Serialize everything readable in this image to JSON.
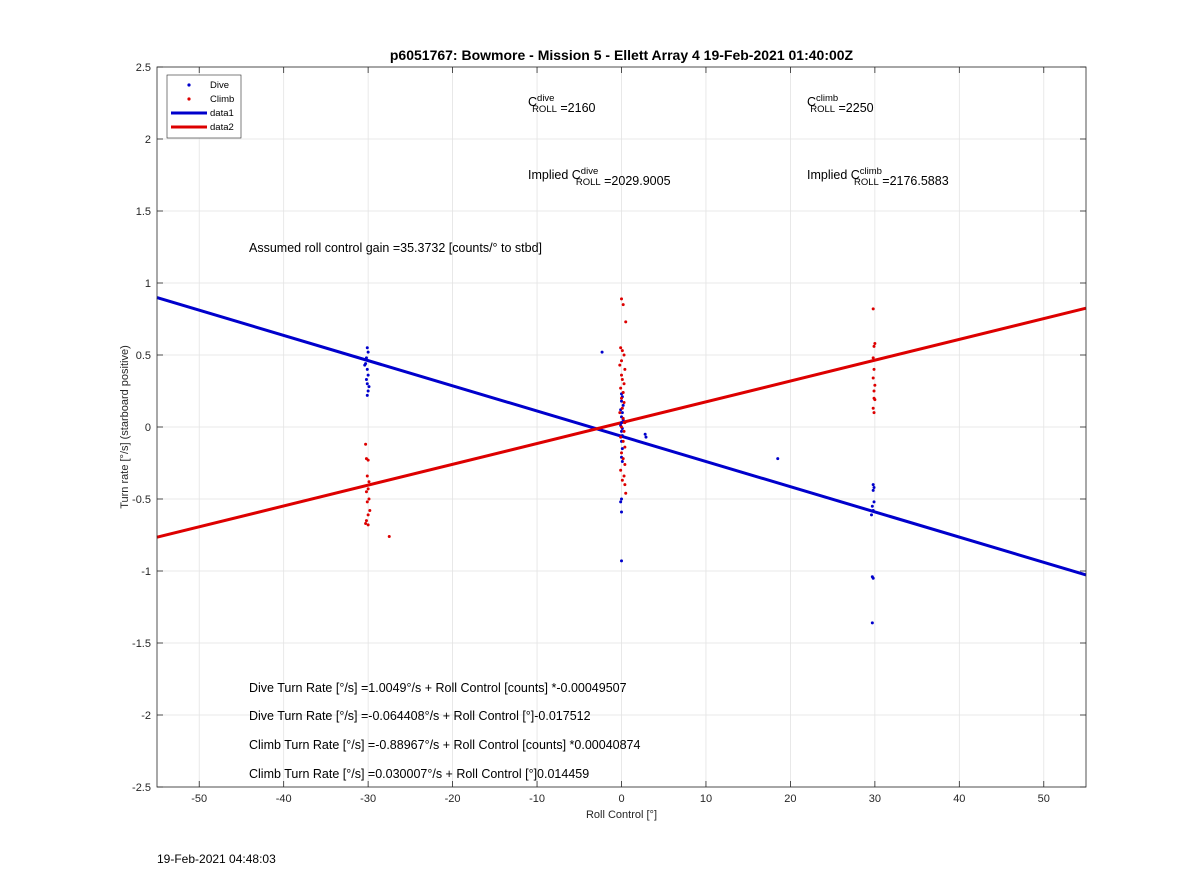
{
  "chart_data": {
    "type": "scatter",
    "title": "p6051767: Bowmore - Mission 5 - Ellett Array 4 19-Feb-2021 01:40:00Z",
    "xlabel": "Roll Control [°]",
    "ylabel": "Turn rate [°/s] (starboard positive)",
    "xlim": [
      -55,
      55
    ],
    "ylim": [
      -2.5,
      2.5
    ],
    "xticks": [
      -50,
      -40,
      -30,
      -20,
      -10,
      0,
      10,
      20,
      30,
      40,
      50
    ],
    "yticks": [
      -2.5,
      -2,
      -1.5,
      -1,
      -0.5,
      0,
      0.5,
      1,
      1.5,
      2,
      2.5
    ],
    "xtick_labels": [
      "-50",
      "-40",
      "-30",
      "-20",
      "-10",
      "0",
      "10",
      "20",
      "30",
      "40",
      "50"
    ],
    "ytick_labels": [
      "-2.5",
      "-2",
      "-1.5",
      "-1",
      "-0.5",
      "0",
      "0.5",
      "1",
      "1.5",
      "2",
      "2.5"
    ],
    "grid": true,
    "legend_position": "top-left",
    "series": [
      {
        "name": "Dive",
        "kind": "scatter",
        "color": "#0000cc",
        "points": [
          [
            -30.4,
            0.43
          ],
          [
            -30.3,
            0.44
          ],
          [
            -30.1,
            0.55
          ],
          [
            -30.0,
            0.52
          ],
          [
            -30.2,
            0.48
          ],
          [
            -30.1,
            0.4
          ],
          [
            -30.0,
            0.36
          ],
          [
            -30.2,
            0.33
          ],
          [
            -30.1,
            0.3
          ],
          [
            -29.9,
            0.28
          ],
          [
            -30.0,
            0.25
          ],
          [
            -30.1,
            0.22
          ],
          [
            -2.3,
            0.52
          ],
          [
            0.0,
            0.23
          ],
          [
            0.1,
            0.21
          ],
          [
            0.0,
            0.18
          ],
          [
            0.2,
            0.15
          ],
          [
            -0.1,
            0.12
          ],
          [
            0.1,
            0.1
          ],
          [
            0.0,
            0.07
          ],
          [
            0.2,
            0.05
          ],
          [
            0.0,
            0.03
          ],
          [
            -0.1,
            0.01
          ],
          [
            0.1,
            -0.01
          ],
          [
            0.0,
            -0.03
          ],
          [
            0.1,
            -0.06
          ],
          [
            0.0,
            -0.1
          ],
          [
            0.1,
            -0.15
          ],
          [
            0.0,
            -0.21
          ],
          [
            0.1,
            -0.24
          ],
          [
            0.0,
            -0.5
          ],
          [
            -0.1,
            -0.52
          ],
          [
            0.0,
            -0.59
          ],
          [
            0.0,
            -0.93
          ],
          [
            2.8,
            -0.05
          ],
          [
            2.9,
            -0.07
          ],
          [
            18.5,
            -0.22
          ],
          [
            29.8,
            -0.4
          ],
          [
            29.9,
            -0.42
          ],
          [
            29.8,
            -0.44
          ],
          [
            29.9,
            -0.52
          ],
          [
            29.7,
            -0.55
          ],
          [
            29.8,
            -0.58
          ],
          [
            29.6,
            -0.61
          ],
          [
            29.7,
            -1.04
          ],
          [
            29.8,
            -1.05
          ],
          [
            29.7,
            -1.36
          ]
        ]
      },
      {
        "name": "Climb",
        "kind": "scatter",
        "color": "#dd0000",
        "points": [
          [
            -30.3,
            -0.12
          ],
          [
            -30.2,
            -0.22
          ],
          [
            -30.0,
            -0.23
          ],
          [
            -30.1,
            -0.34
          ],
          [
            -29.9,
            -0.38
          ],
          [
            -30.0,
            -0.43
          ],
          [
            -30.2,
            -0.45
          ],
          [
            -29.9,
            -0.5
          ],
          [
            -30.1,
            -0.52
          ],
          [
            -29.8,
            -0.58
          ],
          [
            -30.0,
            -0.61
          ],
          [
            -30.2,
            -0.65
          ],
          [
            -30.3,
            -0.67
          ],
          [
            -30.0,
            -0.68
          ],
          [
            -27.5,
            -0.76
          ],
          [
            0.0,
            0.89
          ],
          [
            0.2,
            0.85
          ],
          [
            0.5,
            0.73
          ],
          [
            -0.1,
            0.55
          ],
          [
            0.1,
            0.53
          ],
          [
            0.3,
            0.5
          ],
          [
            0.0,
            0.46
          ],
          [
            -0.2,
            0.43
          ],
          [
            0.4,
            0.4
          ],
          [
            0.0,
            0.36
          ],
          [
            0.1,
            0.33
          ],
          [
            0.3,
            0.3
          ],
          [
            -0.1,
            0.27
          ],
          [
            0.2,
            0.24
          ],
          [
            0.0,
            0.2
          ],
          [
            0.3,
            0.17
          ],
          [
            0.1,
            0.13
          ],
          [
            -0.2,
            0.1
          ],
          [
            0.2,
            0.06
          ],
          [
            0.4,
            0.03
          ],
          [
            0.0,
            0.0
          ],
          [
            0.3,
            -0.03
          ],
          [
            -0.1,
            -0.07
          ],
          [
            0.2,
            -0.1
          ],
          [
            0.4,
            -0.14
          ],
          [
            0.0,
            -0.18
          ],
          [
            0.2,
            -0.22
          ],
          [
            0.4,
            -0.26
          ],
          [
            -0.1,
            -0.3
          ],
          [
            0.3,
            -0.34
          ],
          [
            0.1,
            -0.37
          ],
          [
            0.4,
            -0.4
          ],
          [
            0.5,
            -0.46
          ],
          [
            29.8,
            0.82
          ],
          [
            30.0,
            0.58
          ],
          [
            29.9,
            0.56
          ],
          [
            29.8,
            0.48
          ],
          [
            29.9,
            0.4
          ],
          [
            29.8,
            0.34
          ],
          [
            30.0,
            0.29
          ],
          [
            29.9,
            0.25
          ],
          [
            29.9,
            0.2
          ],
          [
            30.0,
            0.19
          ],
          [
            29.8,
            0.13
          ],
          [
            29.9,
            0.1
          ]
        ]
      },
      {
        "name": "data1",
        "kind": "line",
        "color": "#0000cc",
        "x": [
          -55,
          55
        ],
        "y": [
          0.8988,
          -1.0274
        ]
      },
      {
        "name": "data2",
        "kind": "line",
        "color": "#dd0000",
        "x": [
          -55,
          55
        ],
        "y": [
          -0.7652,
          0.8253
        ]
      }
    ],
    "annotations": [
      {
        "id": "c-roll-dive",
        "parts": [
          {
            "t": "C"
          },
          {
            "t": "ROLL",
            "sub": "dive"
          },
          {
            "t": " =2160"
          }
        ]
      },
      {
        "id": "c-roll-climb",
        "parts": [
          {
            "t": "C"
          },
          {
            "t": "ROLL",
            "sub": "climb"
          },
          {
            "t": " =2250"
          }
        ]
      },
      {
        "id": "implied-dive",
        "parts": [
          {
            "t": "Implied C"
          },
          {
            "t": "ROLL",
            "sub": "dive"
          },
          {
            "t": " =2029.9005"
          }
        ]
      },
      {
        "id": "implied-climb",
        "parts": [
          {
            "t": "Implied C"
          },
          {
            "t": "ROLL",
            "sub": "climb"
          },
          {
            "t": " =2176.5883"
          }
        ]
      },
      {
        "id": "roll-gain",
        "parts": [
          {
            "t": "Assumed roll control gain =35.3732 [counts/° to stbd]"
          }
        ]
      },
      {
        "id": "dive-rate-counts",
        "parts": [
          {
            "t": "Dive Turn Rate [°/s] =1.0049°/s + Roll Control [counts] *-0.00049507"
          }
        ]
      },
      {
        "id": "dive-rate-deg",
        "parts": [
          {
            "t": "Dive Turn Rate [°/s] =-0.064408°/s + Roll Control [°]-0.017512"
          }
        ]
      },
      {
        "id": "climb-rate-counts",
        "parts": [
          {
            "t": "Climb Turn Rate [°/s] =-0.88967°/s + Roll Control [counts] *0.00040874"
          }
        ]
      },
      {
        "id": "climb-rate-deg",
        "parts": [
          {
            "t": "Climb Turn Rate [°/s] =0.030007°/s + Roll Control [°]0.014459"
          }
        ]
      }
    ]
  },
  "footer_timestamp": "19-Feb-2021 04:48:03"
}
